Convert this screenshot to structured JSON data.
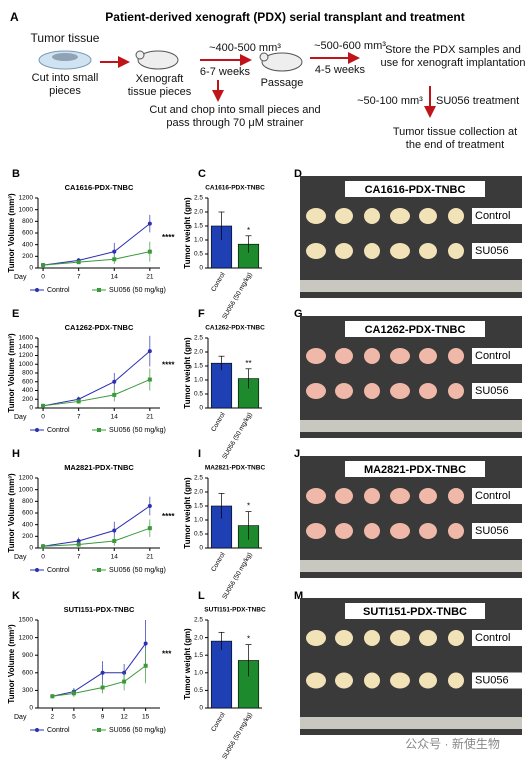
{
  "figure_label": "A",
  "diagram": {
    "title": "Patient-derived xenograft (PDX) serial transplant and treatment",
    "tumor_tissue": "Tumor tissue",
    "cut": "Cut into small pieces",
    "xenograft": "Xenograft tissue pieces",
    "size1": "~400-500 mm³",
    "time1": "6-7 weeks",
    "chop": "Cut and chop into small pieces and pass through 70 μM strainer",
    "passage": "Passage",
    "size2": "~500-600 mm³",
    "time2": "4-5 weeks",
    "store": "Store the PDX samples and use for xenograft implantation",
    "size3": "~50-100 mm³",
    "treatment": "SU056 treatment",
    "collection": "Tumor tissue collection at the end of treatment"
  },
  "chart_data": [
    {
      "type": "line",
      "label": "B",
      "title": "CA1616-PDX-TNBC",
      "xlabel": "Day",
      "ylabel": "Tumor Volume (mm³)",
      "annotation": "****",
      "x": [
        0,
        7,
        14,
        21
      ],
      "xlim": [
        -1,
        23
      ],
      "xticks": [
        0,
        7,
        14,
        21
      ],
      "ylim": [
        0,
        1200
      ],
      "yticks": [
        0,
        200,
        400,
        600,
        800,
        1000,
        1200
      ],
      "series": [
        {
          "name": "Control",
          "color": "#2b2fb0",
          "marker": "circle",
          "values": [
            50,
            130,
            280,
            760
          ],
          "errors": [
            20,
            40,
            150,
            150
          ]
        },
        {
          "name": "SU056 (50 mg/kg)",
          "color": "#3a9a3a",
          "marker": "square",
          "values": [
            50,
            100,
            150,
            280
          ],
          "errors": [
            20,
            30,
            80,
            170
          ]
        }
      ]
    },
    {
      "type": "bar",
      "label": "C",
      "title": "CA1616-PDX-TNBC",
      "ylabel": "Tumor weight (gm)",
      "annotation": "*",
      "categories": [
        "Control",
        "SU056 (50 mg/kg)"
      ],
      "values": [
        1.5,
        0.85
      ],
      "errors": [
        0.5,
        0.3
      ],
      "colors": [
        "#1f3fb5",
        "#1e8a2e"
      ],
      "ylim": [
        0,
        2.5
      ],
      "yticks": [
        0,
        0.5,
        {
          "value": 1,
          "label": "1.0"
        },
        1.5,
        {
          "value": 2,
          "label": "2.0"
        },
        2.5
      ]
    },
    {
      "type": "line",
      "label": "E",
      "title": "CA1262-PDX-TNBC",
      "xlabel": "Day",
      "ylabel": "Tumor Volume (mm³)",
      "annotation": "****",
      "x": [
        0,
        7,
        14,
        21
      ],
      "xlim": [
        -1,
        23
      ],
      "xticks": [
        0,
        7,
        14,
        21
      ],
      "ylim": [
        0,
        1600
      ],
      "yticks": [
        0,
        200,
        400,
        600,
        800,
        1000,
        1200,
        1400,
        1600
      ],
      "series": [
        {
          "name": "Control",
          "color": "#2b2fb0",
          "marker": "circle",
          "values": [
            50,
            200,
            600,
            1300
          ],
          "errors": [
            20,
            60,
            200,
            350
          ]
        },
        {
          "name": "SU056 (50 mg/kg)",
          "color": "#3a9a3a",
          "marker": "square",
          "values": [
            50,
            150,
            300,
            650
          ],
          "errors": [
            20,
            50,
            150,
            250
          ]
        }
      ]
    },
    {
      "type": "bar",
      "label": "F",
      "title": "CA1262-PDX-TNBC",
      "ylabel": "Tumor weight (gm)",
      "annotation": "**",
      "categories": [
        "Control",
        "SU056 (50 mg/kg)"
      ],
      "values": [
        1.6,
        1.05
      ],
      "errors": [
        0.25,
        0.35
      ],
      "colors": [
        "#1f3fb5",
        "#1e8a2e"
      ],
      "ylim": [
        0,
        2.5
      ],
      "yticks": [
        0,
        0.5,
        {
          "value": 1,
          "label": "1.0"
        },
        1.5,
        {
          "value": 2,
          "label": "2.0"
        },
        2.5
      ]
    },
    {
      "type": "line",
      "label": "H",
      "title": "MA2821-PDX-TNBC",
      "xlabel": "Day",
      "ylabel": "Tumor Volume (mm³)",
      "annotation": "****",
      "x": [
        0,
        7,
        14,
        21
      ],
      "xlim": [
        -1,
        23
      ],
      "xticks": [
        0,
        7,
        14,
        21
      ],
      "ylim": [
        0,
        1200
      ],
      "yticks": [
        0,
        200,
        400,
        600,
        800,
        1000,
        1200
      ],
      "series": [
        {
          "name": "Control",
          "color": "#2b2fb0",
          "marker": "circle",
          "values": [
            30,
            120,
            300,
            720
          ],
          "errors": [
            20,
            60,
            150,
            160
          ]
        },
        {
          "name": "SU056 (50 mg/kg)",
          "color": "#3a9a3a",
          "marker": "square",
          "values": [
            30,
            60,
            120,
            340
          ],
          "errors": [
            20,
            40,
            80,
            150
          ]
        }
      ]
    },
    {
      "type": "bar",
      "label": "I",
      "title": "MA2821-PDX-TNBC",
      "ylabel": "Tumor weight (gm)",
      "annotation": "*",
      "categories": [
        "Control",
        "SU056 (50 mg/kg)"
      ],
      "values": [
        1.5,
        0.8
      ],
      "errors": [
        0.45,
        0.5
      ],
      "colors": [
        "#1f3fb5",
        "#1e8a2e"
      ],
      "ylim": [
        0,
        2.5
      ],
      "yticks": [
        0,
        0.5,
        {
          "value": 1,
          "label": "1.0"
        },
        1.5,
        {
          "value": 2,
          "label": "2.0"
        },
        2.5
      ]
    },
    {
      "type": "line",
      "label": "K",
      "title": "SUTI151-PDX-TNBC",
      "xlabel": "Day",
      "ylabel": "Tumor Volume (mm³)",
      "annotation": "***",
      "x": [
        2,
        5,
        9,
        12,
        15
      ],
      "xlim": [
        0,
        17
      ],
      "xticks": [
        2,
        5,
        9,
        12,
        15
      ],
      "ylim": [
        0,
        1500
      ],
      "yticks": [
        0,
        300,
        600,
        900,
        1200,
        1500
      ],
      "series": [
        {
          "name": "Control",
          "color": "#2b2fb0",
          "marker": "circle",
          "values": [
            200,
            280,
            600,
            600,
            1100
          ],
          "errors": [
            20,
            60,
            200,
            150,
            400
          ]
        },
        {
          "name": "SU056 (50 mg/kg)",
          "color": "#3a9a3a",
          "marker": "square",
          "values": [
            200,
            250,
            350,
            450,
            720
          ],
          "errors": [
            20,
            60,
            100,
            150,
            300
          ]
        }
      ]
    },
    {
      "type": "bar",
      "label": "L",
      "title": "SUTI151-PDX-TNBC",
      "ylabel": "Tumor weight (gm)",
      "annotation": "*",
      "categories": [
        "Control",
        "SU056 (50 mg/kg)"
      ],
      "values": [
        1.9,
        1.35
      ],
      "errors": [
        0.25,
        0.45
      ],
      "colors": [
        "#1f3fb5",
        "#1e8a2e"
      ],
      "ylim": [
        0,
        2.5
      ],
      "yticks": [
        0,
        0.5,
        {
          "value": 1,
          "label": "1.0"
        },
        1.5,
        {
          "value": 2,
          "label": "2.0"
        },
        2.5
      ]
    }
  ],
  "photos": [
    {
      "label": "D",
      "title": "CA1616-PDX-TNBC",
      "rows": [
        "Control",
        "SU056"
      ]
    },
    {
      "label": "G",
      "title": "CA1262-PDX-TNBC",
      "rows": [
        "Control",
        "SU056"
      ]
    },
    {
      "label": "J",
      "title": "MA2821-PDX-TNBC",
      "rows": [
        "Control",
        "SU056"
      ]
    },
    {
      "label": "M",
      "title": "SUTI151-PDX-TNBC",
      "rows": [
        "Control",
        "SU056"
      ]
    }
  ],
  "watermark": "公众号 · 新使生物"
}
